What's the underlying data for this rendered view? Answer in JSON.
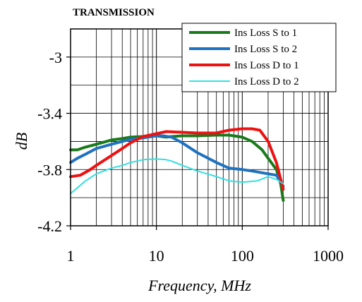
{
  "chart_data": {
    "type": "line",
    "title": "TRANSMISSION",
    "xlabel": "Frequency, MHz",
    "ylabel": "dB",
    "x_scale": "log",
    "xlim": [
      1,
      1000
    ],
    "ylim": [
      -4.2,
      -2.8
    ],
    "x_ticks": [
      1,
      10,
      100,
      1000
    ],
    "x_tick_labels": [
      "1",
      "10",
      "100",
      "1000"
    ],
    "y_ticks": [
      -3.0,
      -3.4,
      -3.8,
      -4.2
    ],
    "y_tick_labels": [
      "-3",
      "-3.4",
      "-3.8",
      "-4.2"
    ],
    "grid": true,
    "legend_position": "top-right",
    "series": [
      {
        "name": "Ins Loss S to 1",
        "color": "#1a7a1a",
        "points": [
          [
            1,
            -3.66
          ],
          [
            1.2,
            -3.66
          ],
          [
            1.5,
            -3.64
          ],
          [
            2,
            -3.62
          ],
          [
            3,
            -3.59
          ],
          [
            4,
            -3.58
          ],
          [
            5,
            -3.57
          ],
          [
            7,
            -3.565
          ],
          [
            10,
            -3.56
          ],
          [
            13,
            -3.57
          ],
          [
            15,
            -3.565
          ],
          [
            20,
            -3.56
          ],
          [
            30,
            -3.56
          ],
          [
            50,
            -3.555
          ],
          [
            70,
            -3.555
          ],
          [
            100,
            -3.57
          ],
          [
            130,
            -3.6
          ],
          [
            170,
            -3.66
          ],
          [
            200,
            -3.72
          ],
          [
            250,
            -3.8
          ],
          [
            280,
            -3.9
          ],
          [
            300,
            -4.02
          ]
        ]
      },
      {
        "name": "Ins Loss S to 2",
        "color": "#1f72c0",
        "points": [
          [
            1,
            -3.75
          ],
          [
            1.2,
            -3.72
          ],
          [
            1.5,
            -3.69
          ],
          [
            2,
            -3.65
          ],
          [
            3,
            -3.62
          ],
          [
            4,
            -3.6
          ],
          [
            5,
            -3.585
          ],
          [
            7,
            -3.575
          ],
          [
            10,
            -3.56
          ],
          [
            12,
            -3.56
          ],
          [
            15,
            -3.57
          ],
          [
            20,
            -3.61
          ],
          [
            30,
            -3.68
          ],
          [
            50,
            -3.75
          ],
          [
            70,
            -3.79
          ],
          [
            100,
            -3.8
          ],
          [
            130,
            -3.81
          ],
          [
            160,
            -3.82
          ],
          [
            200,
            -3.83
          ],
          [
            250,
            -3.84
          ],
          [
            300,
            -3.92
          ]
        ]
      },
      {
        "name": "Ins Loss D to 1",
        "color": "#ee1111",
        "points": [
          [
            1,
            -3.85
          ],
          [
            1.3,
            -3.84
          ],
          [
            1.7,
            -3.8
          ],
          [
            2,
            -3.77
          ],
          [
            3,
            -3.7
          ],
          [
            4,
            -3.65
          ],
          [
            5,
            -3.61
          ],
          [
            7,
            -3.565
          ],
          [
            10,
            -3.545
          ],
          [
            13,
            -3.53
          ],
          [
            20,
            -3.535
          ],
          [
            30,
            -3.54
          ],
          [
            50,
            -3.54
          ],
          [
            70,
            -3.52
          ],
          [
            100,
            -3.51
          ],
          [
            130,
            -3.51
          ],
          [
            160,
            -3.52
          ],
          [
            200,
            -3.6
          ],
          [
            250,
            -3.75
          ],
          [
            300,
            -3.94
          ]
        ]
      },
      {
        "name": "Ins Loss D to 2",
        "color": "#33e0e0",
        "points": [
          [
            1,
            -3.97
          ],
          [
            1.2,
            -3.93
          ],
          [
            1.5,
            -3.88
          ],
          [
            2,
            -3.83
          ],
          [
            3,
            -3.79
          ],
          [
            4,
            -3.77
          ],
          [
            5,
            -3.75
          ],
          [
            7,
            -3.73
          ],
          [
            10,
            -3.725
          ],
          [
            13,
            -3.73
          ],
          [
            15,
            -3.74
          ],
          [
            20,
            -3.77
          ],
          [
            30,
            -3.81
          ],
          [
            50,
            -3.85
          ],
          [
            70,
            -3.88
          ],
          [
            100,
            -3.89
          ],
          [
            150,
            -3.88
          ],
          [
            200,
            -3.85
          ],
          [
            250,
            -3.87
          ],
          [
            300,
            -3.9
          ]
        ]
      }
    ]
  }
}
